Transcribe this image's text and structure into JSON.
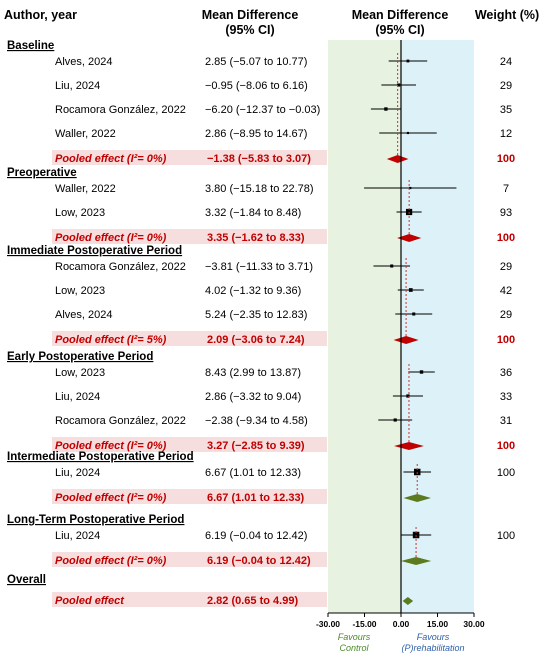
{
  "headers": {
    "author": "Author, year",
    "md_line1": "Mean Difference",
    "md_line2": "(95% CI)",
    "plot_line1": "Mean Difference",
    "plot_line2": "(95% CI)",
    "weight": "Weight (%)"
  },
  "colors": {
    "control_panel": "#e7f2e1",
    "rehab_panel": "#dcf2f8",
    "pooled_text": "#c00000",
    "pooled_bg": "#f7dede",
    "diamond": "#c00000",
    "diamond_overall": "#5c7a1e",
    "ref_line": "#cc3333",
    "favours_control": "#4a8a2a",
    "favours_rehab": "#2f5fa8"
  },
  "chart_data": {
    "type": "forest",
    "xlim": [
      -30,
      30
    ],
    "xticks": [
      -30,
      -15,
      0,
      15,
      30
    ],
    "xtick_labels": [
      "-30.00",
      "-15.00",
      "0.00",
      "15.00",
      "30.00"
    ],
    "favours_left": [
      "Favours",
      "Control"
    ],
    "favours_right": [
      "Favours",
      "(P)rehabilitation"
    ],
    "groups": [
      {
        "name": "Baseline",
        "studies": [
          {
            "author": "Alves, 2024",
            "md": 2.85,
            "lo": -5.07,
            "hi": 10.77,
            "ci_text": "2.85 (−5.07 to 10.77)",
            "weight": "24"
          },
          {
            "author": "Liu, 2024",
            "md": -0.95,
            "lo": -8.06,
            "hi": 6.16,
            "ci_text": "−0.95 (−8.06 to 6.16)",
            "weight": "29"
          },
          {
            "author": "Rocamora González,  2022",
            "md": -6.2,
            "lo": -12.37,
            "hi": -0.03,
            "ci_text": "−6.20 (−12.37 to −0.03)",
            "weight": "35"
          },
          {
            "author": "Waller, 2022",
            "md": 2.86,
            "lo": -8.95,
            "hi": 14.67,
            "ci_text": "2.86 (−8.95 to 14.67)",
            "weight": "12"
          }
        ],
        "pooled": {
          "label": "Pooled effect (I²= 0%)",
          "md": -1.38,
          "lo": -5.83,
          "hi": 3.07,
          "ci_text": "−1.38 (−5.83 to 3.07)",
          "weight": "100"
        }
      },
      {
        "name": "Preoperative",
        "studies": [
          {
            "author": "Waller, 2022",
            "md": 3.8,
            "lo": -15.18,
            "hi": 22.78,
            "ci_text": "3.80 (−15.18 to 22.78)",
            "weight": "7"
          },
          {
            "author": "Low, 2023",
            "md": 3.32,
            "lo": -1.84,
            "hi": 8.48,
            "ci_text": "3.32 (−1.84 to 8.48)",
            "weight": "93"
          }
        ],
        "pooled": {
          "label": "Pooled effect (I²= 0%)",
          "md": 3.35,
          "lo": -1.62,
          "hi": 8.33,
          "ci_text": "3.35 (−1.62 to 8.33)",
          "weight": "100"
        }
      },
      {
        "name": "Immediate Postoperative Period",
        "studies": [
          {
            "author": "Rocamora González, 2022",
            "md": -3.81,
            "lo": -11.33,
            "hi": 3.71,
            "ci_text": "−3.81 (−11.33 to 3.71)",
            "weight": "29"
          },
          {
            "author": "Low, 2023",
            "md": 4.02,
            "lo": -1.32,
            "hi": 9.36,
            "ci_text": "4.02 (−1.32 to 9.36)",
            "weight": "42"
          },
          {
            "author": "Alves, 2024",
            "md": 5.24,
            "lo": -2.35,
            "hi": 12.83,
            "ci_text": "5.24 (−2.35 to 12.83)",
            "weight": "29"
          }
        ],
        "pooled": {
          "label": "Pooled effect (I²= 5%)",
          "md": 2.09,
          "lo": -3.06,
          "hi": 7.24,
          "ci_text": "2.09 (−3.06 to 7.24)",
          "weight": "100"
        }
      },
      {
        "name": "Early Postoperative Period",
        "studies": [
          {
            "author": "Low, 2023",
            "md": 8.43,
            "lo": 2.99,
            "hi": 13.87,
            "ci_text": "8.43 (2.99 to 13.87)",
            "weight": "36"
          },
          {
            "author": "Liu, 2024",
            "md": 2.86,
            "lo": -3.32,
            "hi": 9.04,
            "ci_text": "2.86 (−3.32 to 9.04)",
            "weight": "33"
          },
          {
            "author": "Rocamora González, 2022",
            "md": -2.38,
            "lo": -9.34,
            "hi": 4.58,
            "ci_text": "−2.38 (−9.34 to 4.58)",
            "weight": "31"
          }
        ],
        "pooled": {
          "label": "Pooled effect (I²= 0%)",
          "md": 3.27,
          "lo": -2.85,
          "hi": 9.39,
          "ci_text": "3.27 (−2.85 to 9.39)",
          "weight": "100"
        }
      },
      {
        "name": "Intermediate Postoperative Period",
        "studies": [
          {
            "author": "Liu, 2024",
            "md": 6.67,
            "lo": 1.01,
            "hi": 12.33,
            "ci_text": "6.67 (1.01 to 12.33)",
            "weight": "100"
          }
        ],
        "pooled": {
          "label": "Pooled effect (I²= 0%)",
          "md": 6.67,
          "lo": 1.01,
          "hi": 12.33,
          "ci_text": "6.67 (1.01 to 12.33)",
          "weight": ""
        }
      },
      {
        "name": "Long-Term Postoperative Period",
        "studies": [
          {
            "author": "Liu, 2024",
            "md": 6.19,
            "lo": -0.04,
            "hi": 12.42,
            "ci_text": "6.19 (−0.04 to 12.42)",
            "weight": "100"
          }
        ],
        "pooled": {
          "label": "Pooled effect (I²= 0%)",
          "md": 6.19,
          "lo": -0.04,
          "hi": 12.42,
          "ci_text": "6.19 (−0.04 to 12.42)",
          "weight": ""
        }
      },
      {
        "name": "Overall",
        "studies": [],
        "pooled": {
          "label": "Pooled effect",
          "md": 2.82,
          "lo": 0.65,
          "hi": 4.99,
          "ci_text": "2.82 (0.65 to 4.99)",
          "weight": ""
        }
      }
    ]
  }
}
